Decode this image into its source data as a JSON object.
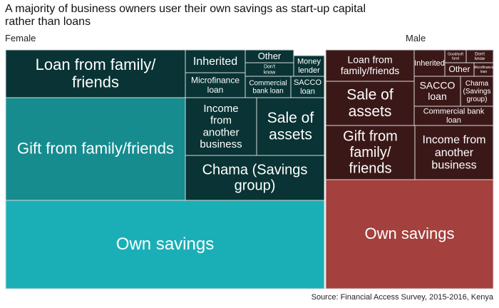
{
  "title": "A majority of business owners user their own savings as start-up capital\n rather than loans",
  "source": "Source: Financial Access Survey, 2015-2016, Kenya",
  "chart_data": {
    "type": "treemap",
    "title": "A majority of business owners user their own savings as start-up capital\n rather than loans",
    "panels": [
      {
        "name": "Female",
        "colors": {
          "own": "#1aafb6",
          "gift": "#168c8f",
          "dark": "#093334"
        },
        "tiles": [
          {
            "label": "Own savings",
            "value": 39.0
          },
          {
            "label": "Gift from family/friends",
            "value": 20.1
          },
          {
            "label": "Loan from family/ friends",
            "value": 14.3
          },
          {
            "label": "Chama (Savings group)",
            "value": 5.6
          },
          {
            "label": "Income from another business",
            "value": 4.6
          },
          {
            "label": "Sale of assets",
            "value": 3.8
          },
          {
            "label": "Inherited",
            "value": 2.2
          },
          {
            "label": "Microfinance loan",
            "value": 2.2
          },
          {
            "label": "Commercial bank loan",
            "value": 1.3
          },
          {
            "label": "SACCO loan",
            "value": 1.1
          },
          {
            "label": "Other",
            "value": 0.7
          },
          {
            "label": "Money lender",
            "value": 0.7
          },
          {
            "label": "Don't know",
            "value": 0.6
          }
        ]
      },
      {
        "name": "Male",
        "colors": {
          "own": "#a4403d",
          "gift": "#3b1818",
          "dark": "#3b1818"
        },
        "tiles": [
          {
            "label": "Own savings",
            "value": 37.8
          },
          {
            "label": "Gift from family/ friends",
            "value": 10.8
          },
          {
            "label": "Income from another business",
            "value": 10.4
          },
          {
            "label": "Sale of assets",
            "value": 7.0
          },
          {
            "label": "Loan from family/ friends",
            "value": 6.1
          },
          {
            "label": "SACCO loan",
            "value": 3.3
          },
          {
            "label": "Chama (Savings group)",
            "value": 2.9
          },
          {
            "label": "Commercial bank loan",
            "value": 3.3
          },
          {
            "label": "Inherited",
            "value": 2.2
          },
          {
            "label": "Other",
            "value": 1.3
          },
          {
            "label": "Good/soft fund",
            "value": 0.5
          },
          {
            "label": "Don't know",
            "value": 0.5
          },
          {
            "label": "Microfinance loan",
            "value": 0.5
          }
        ]
      }
    ]
  }
}
